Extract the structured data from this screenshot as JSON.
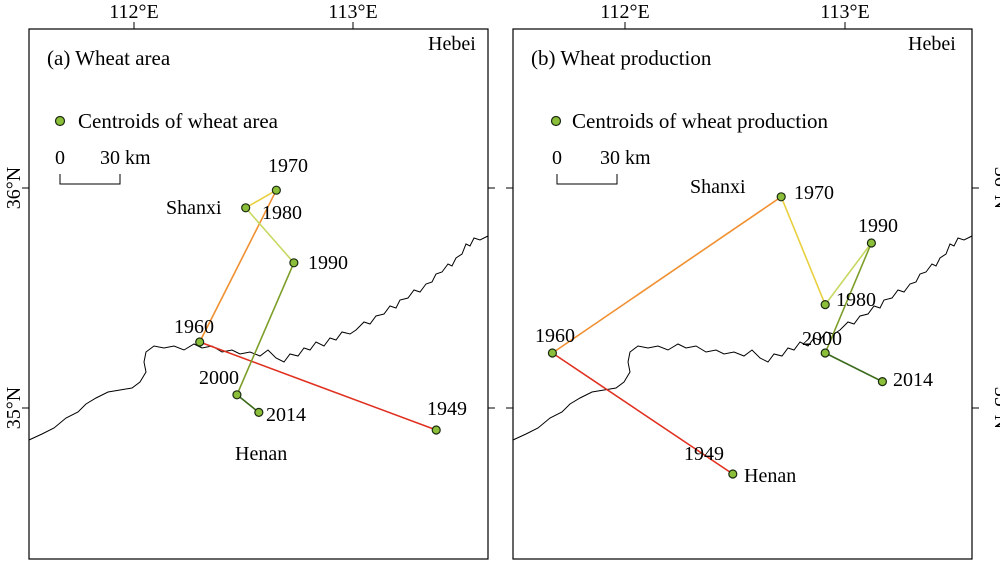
{
  "axis_labels": {
    "lon_112": "112°E",
    "lon_113": "113°E",
    "lat_36": "36°N",
    "lat_35": "35°N"
  },
  "colors": {
    "point_fill": "#8bbf3a",
    "decade_colors": [
      "#e03020",
      "#f09030",
      "#e8d040",
      "#c8d860",
      "#7c9e28",
      "#3b6b1a"
    ]
  },
  "panels": [
    {
      "title": "(a) Wheat area",
      "legend": "Centroids of wheat area",
      "scale_labels": [
        "0",
        "30 km"
      ],
      "provinces": [
        "Hebei",
        "Shanxi",
        "Henan"
      ],
      "centroids": [
        {
          "year": "1949",
          "lon": 113.38,
          "lat": 34.9
        },
        {
          "year": "1960",
          "lon": 112.3,
          "lat": 35.3
        },
        {
          "year": "1970",
          "lon": 112.65,
          "lat": 35.99
        },
        {
          "year": "1980",
          "lon": 112.51,
          "lat": 35.91
        },
        {
          "year": "1990",
          "lon": 112.73,
          "lat": 35.66
        },
        {
          "year": "2000",
          "lon": 112.47,
          "lat": 35.06
        },
        {
          "year": "2014",
          "lon": 112.57,
          "lat": 34.98
        }
      ]
    },
    {
      "title": "(b) Wheat production",
      "legend": "Centroids of wheat production",
      "scale_labels": [
        "0",
        "30 km"
      ],
      "provinces": [
        "Hebei",
        "Shanxi",
        "Henan"
      ],
      "centroids": [
        {
          "year": "1949",
          "lon": 112.49,
          "lat": 34.7
        },
        {
          "year": "1960",
          "lon": 111.67,
          "lat": 35.25
        },
        {
          "year": "1970",
          "lon": 112.71,
          "lat": 35.96
        },
        {
          "year": "1980",
          "lon": 112.91,
          "lat": 35.47
        },
        {
          "year": "1990",
          "lon": 113.12,
          "lat": 35.75
        },
        {
          "year": "2000",
          "lon": 112.91,
          "lat": 35.25
        },
        {
          "year": "2014",
          "lon": 113.17,
          "lat": 35.12
        }
      ]
    }
  ]
}
